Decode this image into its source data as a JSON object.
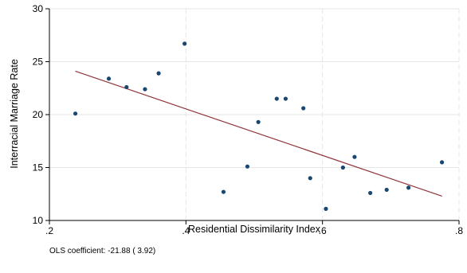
{
  "chart_data": {
    "type": "scatter",
    "title": "",
    "xlabel": "Residential Dissimilarity Index",
    "ylabel": "Interracial Marriage Rate",
    "xlim": [
      0.2,
      0.8
    ],
    "ylim": [
      10,
      30
    ],
    "x_ticks": [
      0.2,
      0.4,
      0.6,
      0.8
    ],
    "x_tick_labels": [
      ".2",
      ".4",
      ".6",
      ".8"
    ],
    "y_ticks": [
      10,
      15,
      20,
      25,
      30
    ],
    "y_tick_labels": [
      "10",
      "15",
      "20",
      "25",
      "30"
    ],
    "grid": true,
    "legend": "none",
    "colors": {
      "points": "#1a476f",
      "fit_line": "#90353b",
      "grid": "#e6e6e6",
      "axis": "#000000"
    },
    "points": [
      {
        "x": 0.238,
        "y": 20.1
      },
      {
        "x": 0.287,
        "y": 23.4
      },
      {
        "x": 0.313,
        "y": 22.6
      },
      {
        "x": 0.34,
        "y": 22.4
      },
      {
        "x": 0.36,
        "y": 23.9
      },
      {
        "x": 0.398,
        "y": 26.7
      },
      {
        "x": 0.455,
        "y": 12.7
      },
      {
        "x": 0.49,
        "y": 15.1
      },
      {
        "x": 0.506,
        "y": 19.3
      },
      {
        "x": 0.533,
        "y": 21.5
      },
      {
        "x": 0.546,
        "y": 21.5
      },
      {
        "x": 0.572,
        "y": 20.6
      },
      {
        "x": 0.582,
        "y": 14.0
      },
      {
        "x": 0.605,
        "y": 11.1
      },
      {
        "x": 0.63,
        "y": 15.0
      },
      {
        "x": 0.647,
        "y": 16.0
      },
      {
        "x": 0.67,
        "y": 12.6
      },
      {
        "x": 0.694,
        "y": 12.9
      },
      {
        "x": 0.726,
        "y": 13.1
      },
      {
        "x": 0.775,
        "y": 15.5
      }
    ],
    "fit_line": [
      {
        "x": 0.238,
        "y": 24.1
      },
      {
        "x": 0.775,
        "y": 12.3
      }
    ],
    "annotation": "OLS coefficient: -21.88 ( 3.92)"
  }
}
